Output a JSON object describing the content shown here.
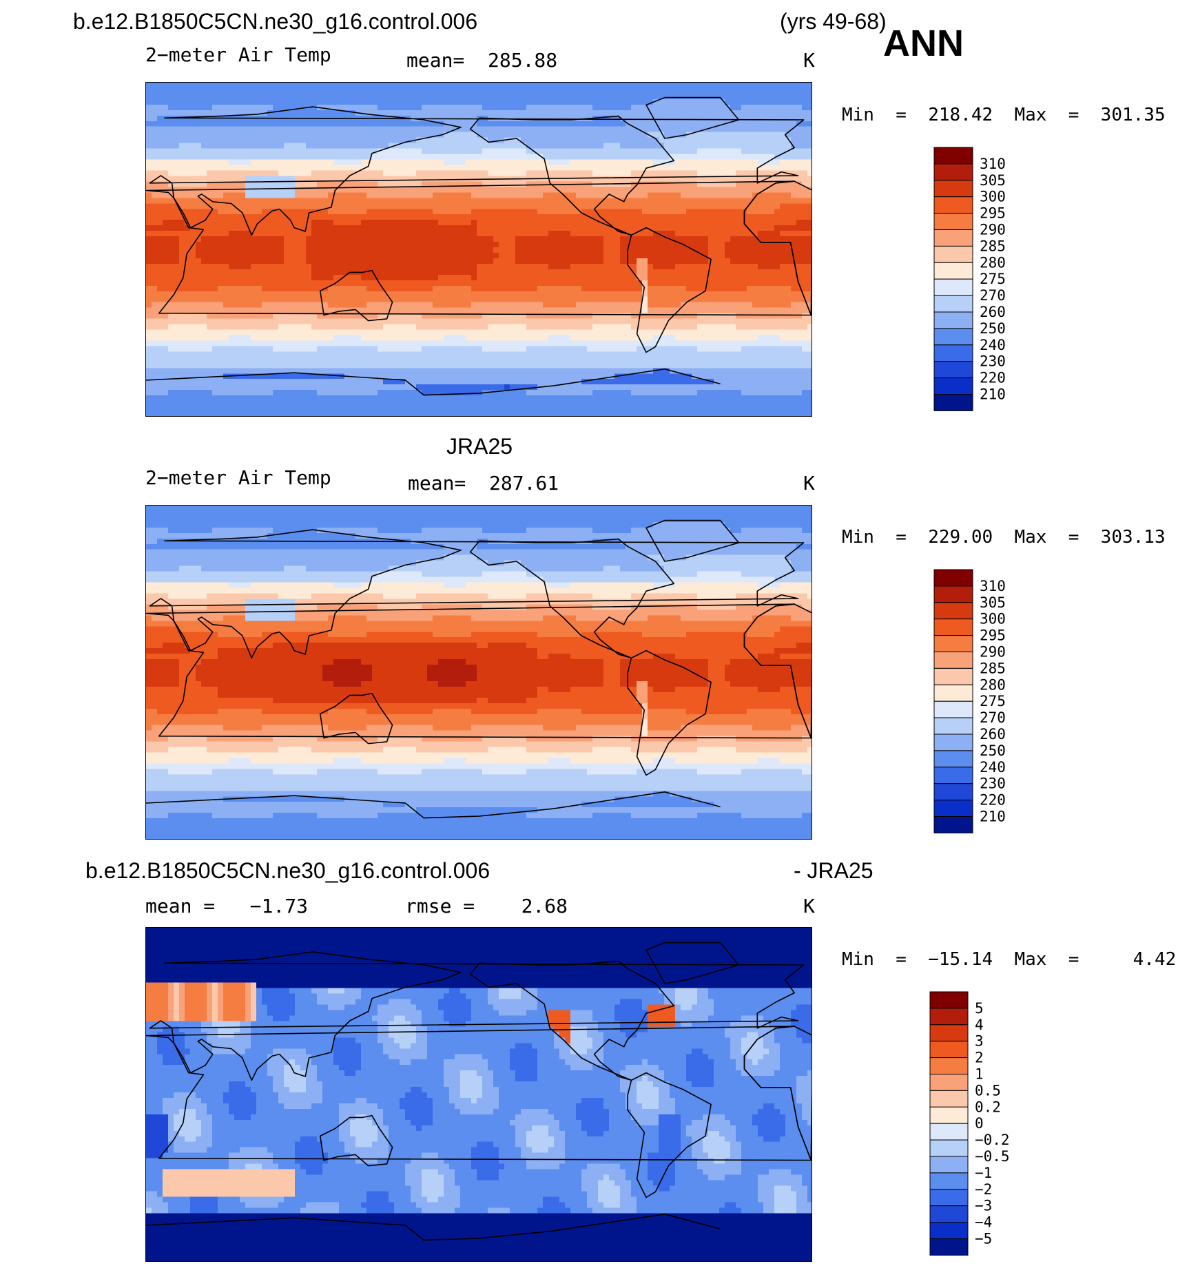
{
  "header": {
    "case_title": "b.e12.B1850C5CN.ne30_g16.control.006",
    "years": "(yrs 49-68)",
    "season": "ANN"
  },
  "panels": [
    {
      "id": "model",
      "title": "",
      "variable": "2−meter Air Temp",
      "mean_label": "mean=  285.88",
      "units": "K",
      "minmax": "Min  =  218.42  Max  =  301.35",
      "colormap": "temperature",
      "colorbar_labels": [
        "310",
        "305",
        "300",
        "295",
        "290",
        "285",
        "280",
        "275",
        "270",
        "260",
        "250",
        "240",
        "230",
        "220",
        "210"
      ]
    },
    {
      "id": "obs",
      "title": "JRA25",
      "variable": "2−meter Air Temp",
      "mean_label": "mean=  287.61",
      "units": "K",
      "minmax": "Min  =  229.00  Max  =  303.13",
      "colormap": "temperature",
      "colorbar_labels": [
        "310",
        "305",
        "300",
        "295",
        "290",
        "285",
        "280",
        "275",
        "270",
        "260",
        "250",
        "240",
        "230",
        "220",
        "210"
      ]
    },
    {
      "id": "diff",
      "title": "b.e12.B1850C5CN.ne30_g16.control.006",
      "title_right": "- JRA25",
      "variable": "mean =   −1.73",
      "mean_label": "rmse =    2.68",
      "units": "K",
      "minmax": "Min  =  −15.14  Max  =     4.42",
      "colormap": "difference",
      "colorbar_labels": [
        "5",
        "4",
        "3",
        "2",
        "1",
        "0.5",
        "0.2",
        "0",
        "−0.2",
        "−0.5",
        "−1",
        "−2",
        "−3",
        "−4",
        "−5"
      ]
    }
  ],
  "colors": {
    "temperature": [
      "#800000",
      "#b31e0c",
      "#d83a10",
      "#ee5a20",
      "#f67d42",
      "#f9a179",
      "#fcc8ab",
      "#fdebd8",
      "#dde9fa",
      "#b7d0f7",
      "#8cb0f3",
      "#5c8ef0",
      "#3a6be8",
      "#2048d8",
      "#0a2fc8",
      "#00148c"
    ],
    "difference": [
      "#800000",
      "#b31e0c",
      "#d83a10",
      "#ee5a20",
      "#f67d42",
      "#f9a179",
      "#fcc8ab",
      "#fdebd8",
      "#dde9fa",
      "#b7d0f7",
      "#8cb0f3",
      "#5c8ef0",
      "#3a6be8",
      "#2048d8",
      "#0a2fc8",
      "#00148c"
    ]
  }
}
